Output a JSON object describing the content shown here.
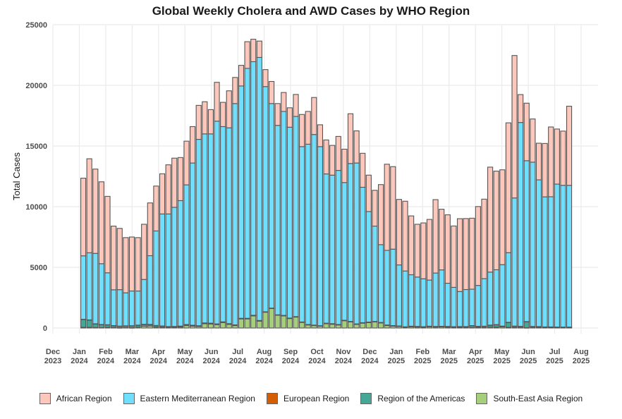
{
  "chart_data": {
    "type": "bar",
    "stacked": true,
    "title": "Global Weekly Cholera and AWD Cases by WHO Region",
    "xlabel": "",
    "ylabel": "Total Cases",
    "ylim": [
      0,
      25000
    ],
    "yticks": [
      0,
      5000,
      10000,
      15000,
      20000,
      25000
    ],
    "grid": true,
    "legend_position": "bottom",
    "x_tick_labels": [
      {
        "month": "Dec",
        "year": "2023"
      },
      {
        "month": "Jan",
        "year": "2024"
      },
      {
        "month": "Feb",
        "year": "2024"
      },
      {
        "month": "Mar",
        "year": "2024"
      },
      {
        "month": "Apr",
        "year": "2024"
      },
      {
        "month": "May",
        "year": "2024"
      },
      {
        "month": "Jun",
        "year": "2024"
      },
      {
        "month": "Jul",
        "year": "2024"
      },
      {
        "month": "Aug",
        "year": "2024"
      },
      {
        "month": "Sep",
        "year": "2024"
      },
      {
        "month": "Oct",
        "year": "2024"
      },
      {
        "month": "Nov",
        "year": "2024"
      },
      {
        "month": "Dec",
        "year": "2024"
      },
      {
        "month": "Jan",
        "year": "2025"
      },
      {
        "month": "Feb",
        "year": "2025"
      },
      {
        "month": "Mar",
        "year": "2025"
      },
      {
        "month": "Apr",
        "year": "2025"
      },
      {
        "month": "May",
        "year": "2025"
      },
      {
        "month": "Jun",
        "year": "2025"
      },
      {
        "month": "Jul",
        "year": "2025"
      },
      {
        "month": "Aug",
        "year": "2025"
      }
    ],
    "x_unit": "weeks since 2023-12-01 (tick every month)",
    "first_week_offset_weeks": 5.0,
    "series": [
      {
        "name": "South-East Asia Region",
        "color": "#a6cf7b",
        "values": [
          60,
          60,
          40,
          30,
          60,
          40,
          20,
          30,
          20,
          80,
          150,
          170,
          80,
          60,
          30,
          40,
          80,
          200,
          150,
          120,
          350,
          330,
          280,
          450,
          300,
          200,
          750,
          750,
          1000,
          570,
          1300,
          1600,
          1050,
          1000,
          780,
          900,
          460,
          250,
          200,
          150,
          350,
          310,
          250,
          600,
          500,
          300,
          400,
          450,
          500,
          420,
          200,
          150,
          120,
          50,
          100,
          80,
          60,
          100,
          80,
          90,
          70,
          50,
          60,
          60,
          40,
          50,
          40,
          80,
          70,
          90,
          60,
          50,
          30,
          20,
          40,
          50,
          40,
          40,
          30,
          30,
          30
        ]
      },
      {
        "name": "Region of the Americas",
        "color": "#45a896",
        "values": [
          650,
          600,
          300,
          250,
          200,
          150,
          130,
          140,
          160,
          150,
          150,
          120,
          120,
          100,
          80,
          80,
          70,
          80,
          70,
          60,
          60,
          60,
          50,
          50,
          50,
          50,
          40,
          40,
          40,
          40,
          30,
          30,
          30,
          30,
          30,
          30,
          30,
          30,
          30,
          30,
          40,
          40,
          30,
          30,
          30,
          30,
          30,
          30,
          30,
          30,
          40,
          40,
          40,
          40,
          40,
          40,
          40,
          40,
          40,
          40,
          50,
          50,
          50,
          50,
          150,
          80,
          100,
          150,
          200,
          60,
          400,
          100,
          100,
          500,
          80,
          60,
          40,
          40,
          40,
          40,
          40
        ]
      },
      {
        "name": "European Region",
        "color": "#d55e00",
        "values": [
          10,
          10,
          10,
          10,
          10,
          10,
          10,
          10,
          10,
          10,
          10,
          10,
          10,
          10,
          10,
          10,
          10,
          10,
          10,
          10,
          10,
          10,
          10,
          10,
          10,
          10,
          10,
          10,
          10,
          10,
          10,
          10,
          10,
          10,
          10,
          10,
          10,
          10,
          10,
          10,
          10,
          10,
          10,
          10,
          10,
          10,
          10,
          10,
          10,
          10,
          10,
          10,
          10,
          10,
          10,
          10,
          10,
          10,
          10,
          10,
          10,
          10,
          10,
          10,
          10,
          10,
          10,
          10,
          10,
          10,
          10,
          10,
          10,
          10,
          10,
          10,
          10,
          10,
          10,
          10,
          10
        ]
      },
      {
        "name": "Eastern Mediterranean Region",
        "color": "#70dffd",
        "values": [
          5230,
          5530,
          5800,
          5010,
          4280,
          2950,
          3000,
          2720,
          2860,
          2810,
          3690,
          5660,
          7790,
          9230,
          9280,
          9820,
          10340,
          11510,
          13370,
          15360,
          15580,
          15600,
          16710,
          16090,
          16140,
          18240,
          19150,
          20600,
          20900,
          21680,
          18560,
          16860,
          15610,
          16810,
          15730,
          16500,
          14450,
          14860,
          15710,
          14760,
          12300,
          12240,
          12700,
          11350,
          13020,
          13260,
          11160,
          9110,
          7860,
          6410,
          6150,
          6300,
          5030,
          4600,
          4240,
          4070,
          3950,
          3800,
          4400,
          4650,
          3560,
          3240,
          2890,
          3050,
          3000,
          3370,
          3920,
          4370,
          4520,
          5060,
          5740,
          10560,
          16800,
          13260,
          13540,
          12090,
          10720,
          10730,
          11780,
          11680,
          11680
        ]
      },
      {
        "name": "African Region",
        "color": "#fdc8bb",
        "values": [
          6400,
          7750,
          6950,
          6750,
          6300,
          5250,
          5050,
          4550,
          4450,
          4400,
          4550,
          4350,
          3700,
          3310,
          4050,
          4050,
          3550,
          3600,
          3000,
          2800,
          2650,
          2000,
          3200,
          2000,
          3050,
          2150,
          1700,
          2200,
          1850,
          1350,
          1400,
          1820,
          1800,
          1560,
          1600,
          1810,
          2650,
          2700,
          3050,
          1800,
          2800,
          2450,
          2800,
          2750,
          4100,
          2650,
          2800,
          3000,
          2950,
          4950,
          7100,
          6800,
          5400,
          5750,
          4850,
          4350,
          4600,
          5000,
          6050,
          5000,
          5640,
          5060,
          6000,
          5850,
          5850,
          6500,
          6550,
          8650,
          8130,
          7820,
          10700,
          11740,
          2300,
          4740,
          3560,
          3020,
          4400,
          5750,
          4540,
          4470,
          6520
        ]
      }
    ]
  }
}
